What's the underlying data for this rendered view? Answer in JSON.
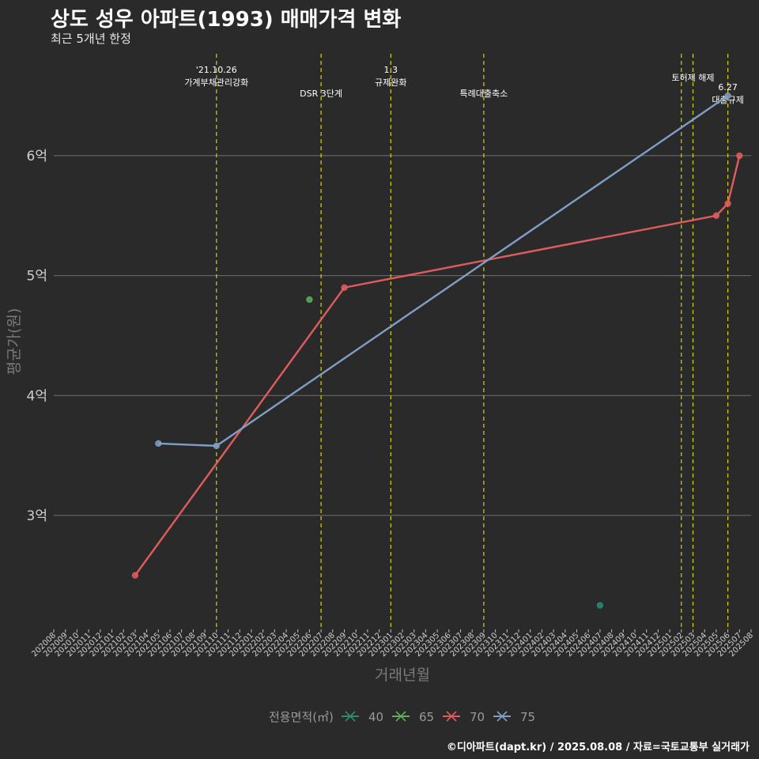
{
  "header": {
    "title": "상도 성우 아파트(1993) 매매가격 변화",
    "subtitle": "최근 5개년 한정"
  },
  "caption": "©디아파트(dapt.kr) / 2025.08.08 / 자료=국토교통부 실거래가",
  "colors": {
    "background": "#2b2a2b",
    "grid": "#6f6f6f",
    "vline": "#d4d400",
    "s40": "#2a8a72",
    "s65": "#5fae5a",
    "s70": "#e05c5c",
    "s75": "#7f9fc5"
  },
  "chart_data": {
    "type": "line",
    "title": "상도 성우 아파트(1993) 매매가격 변화",
    "subtitle": "최근 5개년 한정",
    "xlabel": "거래년월",
    "ylabel": "평균가(원)",
    "xlim": [
      "202008",
      "202508"
    ],
    "ylim": [
      2.05,
      6.85
    ],
    "yunit": "억",
    "y_ticks": [
      {
        "value": 3,
        "label": "3억"
      },
      {
        "value": 4,
        "label": "4억"
      },
      {
        "value": 5,
        "label": "5억"
      },
      {
        "value": 6,
        "label": "6억"
      }
    ],
    "x_ticks": [
      "202008",
      "202009",
      "202010",
      "202011",
      "202012",
      "202101",
      "202102",
      "202103",
      "202104",
      "202105",
      "202106",
      "202107",
      "202108",
      "202109",
      "202110",
      "202111",
      "202112",
      "202201",
      "202202",
      "202203",
      "202204",
      "202205",
      "202206",
      "202207",
      "202208",
      "202209",
      "202210",
      "202211",
      "202212",
      "202301",
      "202302",
      "202303",
      "202304",
      "202305",
      "202306",
      "202307",
      "202308",
      "202309",
      "202310",
      "202311",
      "202312",
      "202401",
      "202402",
      "202403",
      "202404",
      "202405",
      "202406",
      "202407",
      "202408",
      "202409",
      "202410",
      "202411",
      "202412",
      "202501",
      "202502",
      "202503",
      "202504",
      "202505",
      "202506",
      "202507",
      "202508"
    ],
    "grid": true,
    "legend": {
      "title": "전용면적(㎡)",
      "position": "bottom",
      "items": [
        "40",
        "65",
        "70",
        "75"
      ]
    },
    "series": [
      {
        "name": "40",
        "points": [
          {
            "x": "202407",
            "y": 2.25
          }
        ]
      },
      {
        "name": "65",
        "points": [
          {
            "x": "202206",
            "y": 4.8
          }
        ]
      },
      {
        "name": "70",
        "points": [
          {
            "x": "202103",
            "y": 2.5
          },
          {
            "x": "202209",
            "y": 4.9
          },
          {
            "x": "202505",
            "y": 5.5
          },
          {
            "x": "202506",
            "y": 5.6
          },
          {
            "x": "202507",
            "y": 6.0
          }
        ]
      },
      {
        "name": "75",
        "points": [
          {
            "x": "202105",
            "y": 3.6
          },
          {
            "x": "202110",
            "y": 3.58
          },
          {
            "x": "202506",
            "y": 6.5
          }
        ]
      }
    ],
    "annotations": [
      {
        "x": "202110",
        "lines": [
          "'21.10.26",
          "가계부채관리강화"
        ],
        "row": 0
      },
      {
        "x": "202207",
        "lines": [
          "DSR 3단계"
        ],
        "row": 1
      },
      {
        "x": "202301",
        "lines": [
          "1.3",
          "규제완화"
        ],
        "row": 0
      },
      {
        "x": "202309",
        "lines": [
          "특례대출축소"
        ],
        "row": 1
      },
      {
        "x": "202502",
        "lines": [],
        "row": 0
      },
      {
        "x": "202503",
        "lines": [
          "토허제 해제"
        ],
        "row": 0
      },
      {
        "x": "202506",
        "lines": [
          "6.27",
          "대출규제"
        ],
        "row": 2
      }
    ]
  }
}
